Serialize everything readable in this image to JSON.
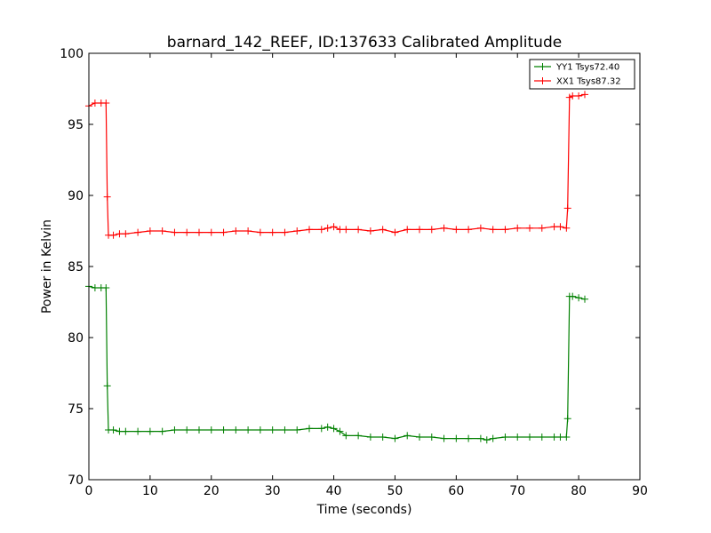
{
  "chart_data": {
    "type": "line",
    "title": "barnard_142_REEF, ID:137633 Calibrated Amplitude",
    "xlabel": "Time (seconds)",
    "ylabel": "Power in Kelvin",
    "xlim": [
      0,
      90
    ],
    "ylim": [
      70,
      100
    ],
    "xticks": [
      0,
      10,
      20,
      30,
      40,
      50,
      60,
      70,
      80,
      90
    ],
    "yticks": [
      70,
      75,
      80,
      85,
      90,
      95,
      100
    ],
    "grid": false,
    "legend_position": "top-right",
    "marker": "+",
    "series": [
      {
        "name": "YY1 Tsys72.40",
        "color": "#008000",
        "x": [
          0,
          1,
          2,
          2.8,
          3.0,
          3.2,
          4,
          5,
          6,
          8,
          10,
          12,
          14,
          16,
          18,
          20,
          22,
          24,
          26,
          28,
          30,
          32,
          34,
          36,
          38,
          39,
          40,
          41,
          42,
          44,
          46,
          48,
          50,
          52,
          54,
          56,
          58,
          60,
          62,
          64,
          65,
          66,
          68,
          70,
          72,
          74,
          76,
          77,
          78.0,
          78.2,
          78.5,
          79,
          80,
          81
        ],
        "y": [
          83.6,
          83.5,
          83.5,
          83.5,
          76.6,
          73.5,
          73.5,
          73.4,
          73.4,
          73.4,
          73.4,
          73.4,
          73.5,
          73.5,
          73.5,
          73.5,
          73.5,
          73.5,
          73.5,
          73.5,
          73.5,
          73.5,
          73.5,
          73.6,
          73.6,
          73.7,
          73.6,
          73.4,
          73.1,
          73.1,
          73.0,
          73.0,
          72.9,
          73.1,
          73.0,
          73.0,
          72.9,
          72.9,
          72.9,
          72.9,
          72.8,
          72.9,
          73.0,
          73.0,
          73.0,
          73.0,
          73.0,
          73.0,
          73.0,
          74.3,
          82.9,
          82.9,
          82.8,
          82.7
        ]
      },
      {
        "name": "XX1 Tsys87.32",
        "color": "#ff0000",
        "x": [
          0,
          1,
          2,
          2.8,
          3.0,
          3.2,
          4,
          5,
          6,
          8,
          10,
          12,
          14,
          16,
          18,
          20,
          22,
          24,
          26,
          28,
          30,
          32,
          34,
          36,
          38,
          39,
          40,
          41,
          42,
          44,
          46,
          48,
          50,
          52,
          54,
          56,
          58,
          60,
          62,
          64,
          66,
          68,
          70,
          72,
          74,
          76,
          77,
          78.0,
          78.2,
          78.5,
          79,
          80,
          81
        ],
        "y": [
          96.3,
          96.5,
          96.5,
          96.5,
          89.9,
          87.2,
          87.2,
          87.3,
          87.3,
          87.4,
          87.5,
          87.5,
          87.4,
          87.4,
          87.4,
          87.4,
          87.4,
          87.5,
          87.5,
          87.4,
          87.4,
          87.4,
          87.5,
          87.6,
          87.6,
          87.7,
          87.8,
          87.6,
          87.6,
          87.6,
          87.5,
          87.6,
          87.4,
          87.6,
          87.6,
          87.6,
          87.7,
          87.6,
          87.6,
          87.7,
          87.6,
          87.6,
          87.7,
          87.7,
          87.7,
          87.8,
          87.8,
          87.7,
          89.1,
          96.9,
          97.0,
          97.0,
          97.1
        ]
      }
    ]
  }
}
